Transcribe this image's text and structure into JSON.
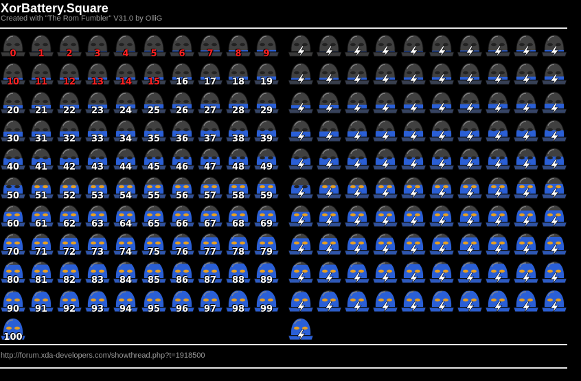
{
  "header": {
    "title": "XorBattery.Square",
    "subtitle": "Created with \"The Rom Fumbler\" V31.0 by OlliG"
  },
  "footer": {
    "link": "http://forum.xda-developers.com/showthread.php?t=1918500"
  },
  "battery_levels": {
    "count": 101,
    "low_threshold": 15,
    "low_color": "#ff2222",
    "normal_color": "#ffffff",
    "empty_color": "#3a3a3a",
    "full_color": "#2a5fd6",
    "charge_bolt_color": "#ffffff",
    "normal_set_icon": "battery-level-icon",
    "charging_set_icon": "battery-charging-icon"
  },
  "labels": [
    "0",
    "1",
    "2",
    "3",
    "4",
    "5",
    "6",
    "7",
    "8",
    "9",
    "10",
    "11",
    "12",
    "13",
    "14",
    "15",
    "16",
    "17",
    "18",
    "19",
    "20",
    "21",
    "22",
    "23",
    "24",
    "25",
    "26",
    "27",
    "28",
    "29",
    "30",
    "31",
    "32",
    "33",
    "34",
    "35",
    "36",
    "37",
    "38",
    "39",
    "40",
    "41",
    "42",
    "43",
    "44",
    "45",
    "46",
    "47",
    "48",
    "49",
    "50",
    "51",
    "52",
    "53",
    "54",
    "55",
    "56",
    "57",
    "58",
    "59",
    "60",
    "61",
    "62",
    "63",
    "64",
    "65",
    "66",
    "67",
    "68",
    "69",
    "70",
    "71",
    "72",
    "73",
    "74",
    "75",
    "76",
    "77",
    "78",
    "79",
    "80",
    "81",
    "82",
    "83",
    "84",
    "85",
    "86",
    "87",
    "88",
    "89",
    "90",
    "91",
    "92",
    "93",
    "94",
    "95",
    "96",
    "97",
    "98",
    "99",
    "100"
  ]
}
